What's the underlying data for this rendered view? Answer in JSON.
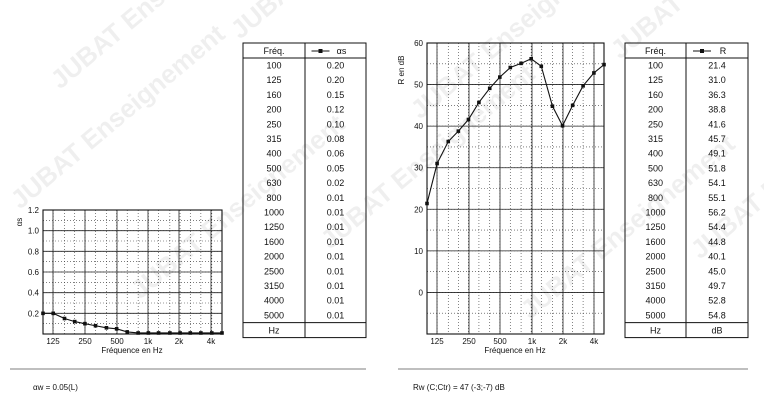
{
  "watermark": "JUBAT Enseignement",
  "chart_data": [
    {
      "type": "line",
      "xlabel": "Fréquence en Hz",
      "ylabel": "αs",
      "ylim": [
        0,
        1.2
      ],
      "yticks": [
        "0.2",
        "0.4",
        "0.6",
        "0.8",
        "1.0",
        "1.2"
      ],
      "xticks": [
        "125",
        "250",
        "500",
        "1k",
        "2k",
        "4k"
      ],
      "grid": true,
      "x": [
        100,
        125,
        160,
        200,
        250,
        315,
        400,
        500,
        630,
        800,
        1000,
        1250,
        1600,
        2000,
        2500,
        3150,
        4000,
        5000
      ],
      "series": [
        {
          "values": [
            0.2,
            0.2,
            0.15,
            0.12,
            0.1,
            0.08,
            0.06,
            0.05,
            0.02,
            0.01,
            0.01,
            0.01,
            0.01,
            0.01,
            0.01,
            0.01,
            0.01,
            0.01
          ]
        }
      ],
      "table": {
        "header_freq": "Fréq.",
        "header_value": "αs",
        "unit_freq": "Hz",
        "unit_value": "",
        "freqs": [
          "100",
          "125",
          "160",
          "200",
          "250",
          "315",
          "400",
          "500",
          "630",
          "800",
          "1000",
          "1250",
          "1600",
          "2000",
          "2500",
          "3150",
          "4000",
          "5000"
        ],
        "values": [
          "0.20",
          "0.20",
          "0.15",
          "0.12",
          "0.10",
          "0.08",
          "0.06",
          "0.05",
          "0.02",
          "0.01",
          "0.01",
          "0.01",
          "0.01",
          "0.01",
          "0.01",
          "0.01",
          "0.01",
          "0.01"
        ]
      },
      "summary": "αw = 0.05(L)"
    },
    {
      "type": "line",
      "xlabel": "Fréquence en Hz",
      "ylabel": "R en dB",
      "ylim": [
        -10,
        60
      ],
      "yticks": [
        "0",
        "10",
        "20",
        "30",
        "40",
        "50",
        "60"
      ],
      "xticks": [
        "125",
        "250",
        "500",
        "1k",
        "2k",
        "4k"
      ],
      "grid": true,
      "x": [
        100,
        125,
        160,
        200,
        250,
        315,
        400,
        500,
        630,
        800,
        1000,
        1250,
        1600,
        2000,
        2500,
        3150,
        4000,
        5000
      ],
      "series": [
        {
          "name": "R",
          "values": [
            21.4,
            31.0,
            36.3,
            38.8,
            41.6,
            45.7,
            49.1,
            51.8,
            54.1,
            55.1,
            56.2,
            54.4,
            44.8,
            40.1,
            45.0,
            49.7,
            52.8,
            54.8
          ]
        }
      ],
      "table": {
        "header_freq": "Fréq.",
        "header_value": "R",
        "unit_freq": "Hz",
        "unit_value": "dB",
        "freqs": [
          "100",
          "125",
          "160",
          "200",
          "250",
          "315",
          "400",
          "500",
          "630",
          "800",
          "1000",
          "1250",
          "1600",
          "2000",
          "2500",
          "3150",
          "4000",
          "5000"
        ],
        "values": [
          "21.4",
          "31.0",
          "36.3",
          "38.8",
          "41.6",
          "45.7",
          "49.1",
          "51.8",
          "54.1",
          "55.1",
          "56.2",
          "54.4",
          "44.8",
          "40.1",
          "45.0",
          "49.7",
          "52.8",
          "54.8"
        ]
      },
      "summary": "Rw (C;Ctr) = 47 (-3;-7) dB"
    }
  ]
}
